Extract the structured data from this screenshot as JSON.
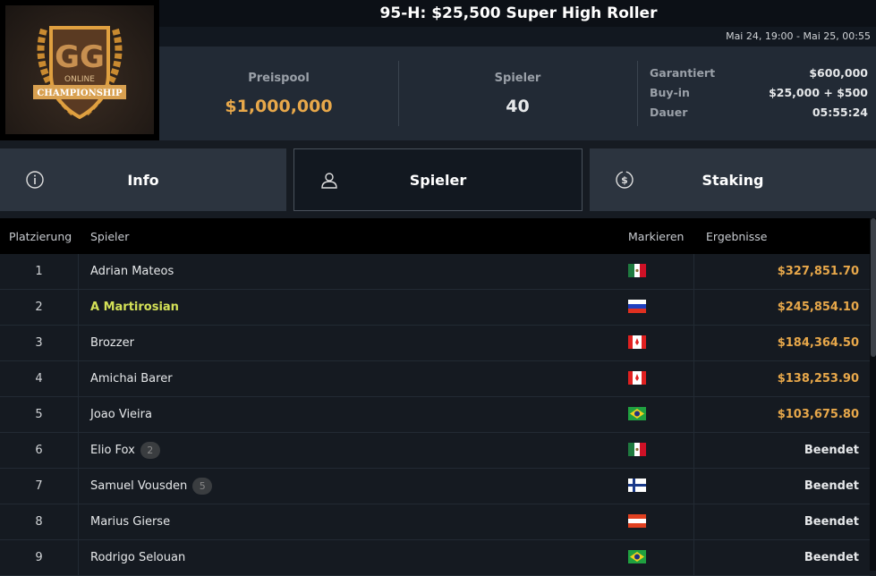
{
  "header": {
    "title": "95-H: $25,500 Super High Roller",
    "date_range": "Mai 24, 19:00 - Mai 25, 00:55",
    "logo_text": "GG ONLINE CHAMPIONSHIP"
  },
  "stats": {
    "prizepool": {
      "label": "Preispool",
      "value": "$1,000,000"
    },
    "players": {
      "label": "Spieler",
      "value": "40"
    },
    "details": [
      {
        "label": "Garantiert",
        "value": "$600,000"
      },
      {
        "label": "Buy-in",
        "value": "$25,000 + $500"
      },
      {
        "label": "Dauer",
        "value": "05:55:24"
      }
    ]
  },
  "tabs": [
    {
      "label": "Info",
      "icon": "info-icon"
    },
    {
      "label": "Spieler",
      "icon": "user-icon",
      "active": true
    },
    {
      "label": "Staking",
      "icon": "dollar-coin-icon"
    }
  ],
  "table": {
    "headers": [
      "Platzierung",
      "Spieler",
      "Markieren",
      "Ergebnisse"
    ],
    "rows": [
      {
        "place": "1",
        "name": "Adrian Mateos",
        "flag": "mexico",
        "result": "$327,851.70"
      },
      {
        "place": "2",
        "name": "A Martirosian",
        "flag": "russia",
        "result": "$245,854.10",
        "highlight": true
      },
      {
        "place": "3",
        "name": "Brozzer",
        "flag": "canada",
        "result": "$184,364.50"
      },
      {
        "place": "4",
        "name": "Amichai Barer",
        "flag": "canada",
        "result": "$138,253.90"
      },
      {
        "place": "5",
        "name": "Joao Vieira",
        "flag": "brazil",
        "result": "$103,675.80"
      },
      {
        "place": "6",
        "name": "Elio Fox",
        "badge": "2",
        "flag": "mexico",
        "result": "Beendet"
      },
      {
        "place": "7",
        "name": "Samuel Vousden",
        "badge": "5",
        "flag": "finland",
        "result": "Beendet"
      },
      {
        "place": "8",
        "name": "Marius Gierse",
        "flag": "austria",
        "result": "Beendet"
      },
      {
        "place": "9",
        "name": "Rodrigo Selouan",
        "flag": "brazil",
        "result": "Beendet"
      }
    ]
  },
  "colors": {
    "gold": "#e8a84a",
    "highlight": "#d4e157",
    "text": "#e6e8ea"
  }
}
